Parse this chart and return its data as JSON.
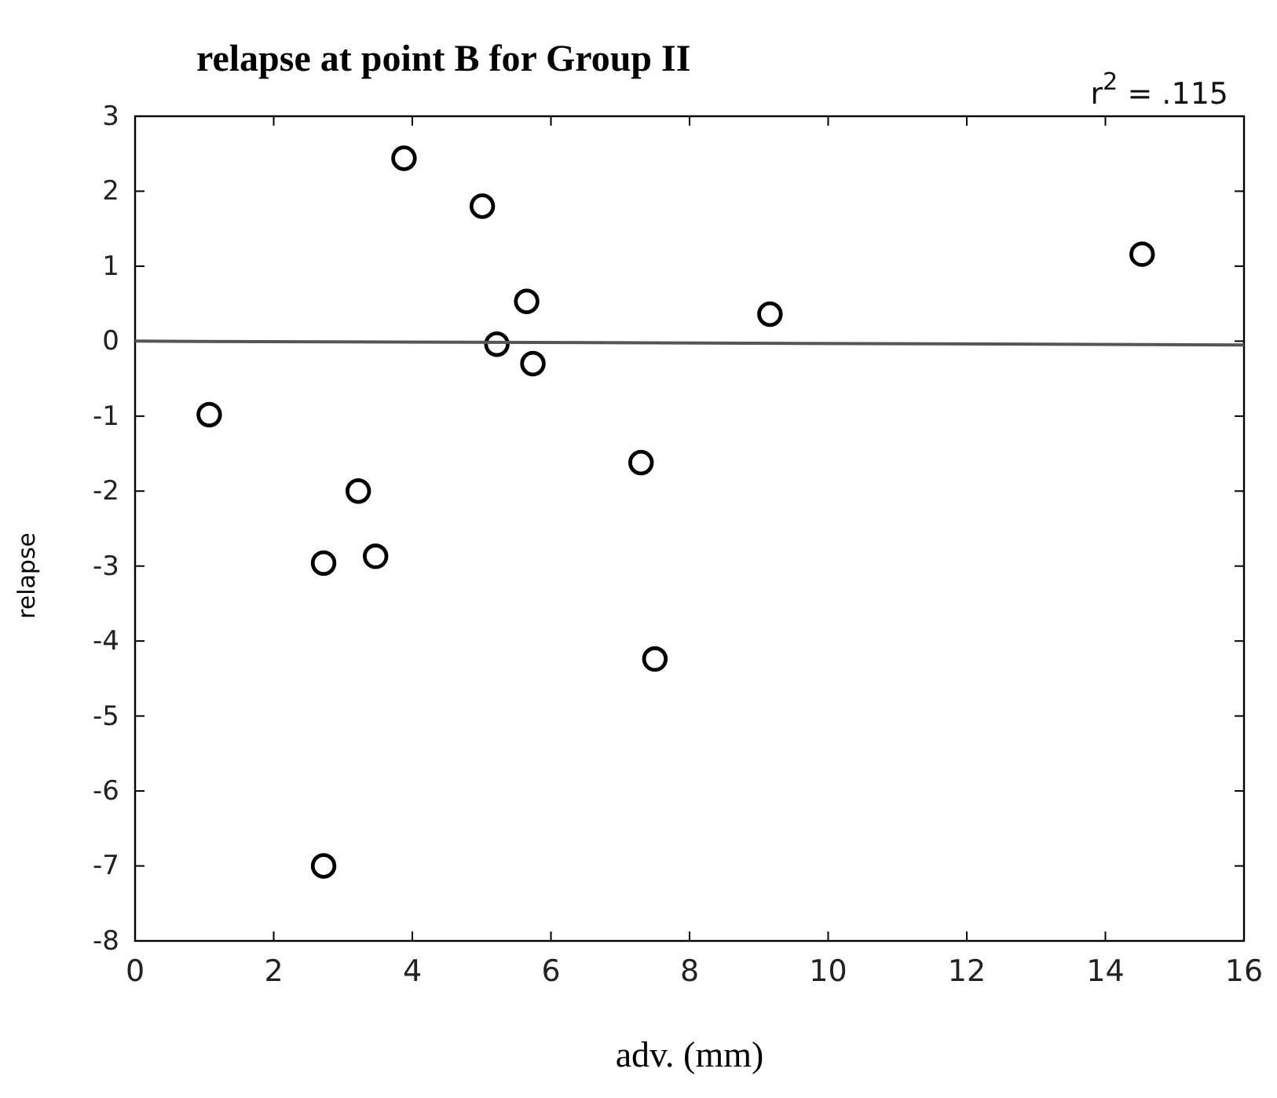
{
  "chart_data": {
    "type": "scatter",
    "title": "relapse at point B for Group II",
    "xlabel": "adv. (mm)",
    "ylabel": "relapse",
    "annotations": [
      "r$^{2}$ = .115"
    ],
    "xlim": [
      0,
      16
    ],
    "xticks": [
      0,
      2,
      4,
      6,
      8,
      10,
      12,
      14,
      16
    ],
    "ylim": [
      -8,
      3
    ],
    "yticks": [
      -8,
      -7,
      -6,
      -5,
      -4,
      -3,
      -2,
      -1,
      0,
      1,
      2,
      3
    ],
    "grid": false,
    "marker": "circle",
    "series": [
      {
        "color": "#000000",
        "x": [
          1.07,
          2.72,
          2.72,
          3.22,
          3.47,
          3.88,
          5.01,
          5.22,
          5.65,
          5.74,
          7.3,
          7.5,
          9.16,
          14.53
        ],
        "values": [
          -0.98,
          -2.96,
          -7.0,
          -2.0,
          -2.87,
          2.44,
          1.8,
          -0.04,
          0.53,
          -0.3,
          -1.62,
          -4.24,
          0.36,
          1.16
        ]
      },
      {
        "type": "line",
        "color": "#555555",
        "x": [
          0,
          16
        ],
        "values": [
          0.0,
          -0.05
        ],
        "marker": "none"
      }
    ]
  }
}
